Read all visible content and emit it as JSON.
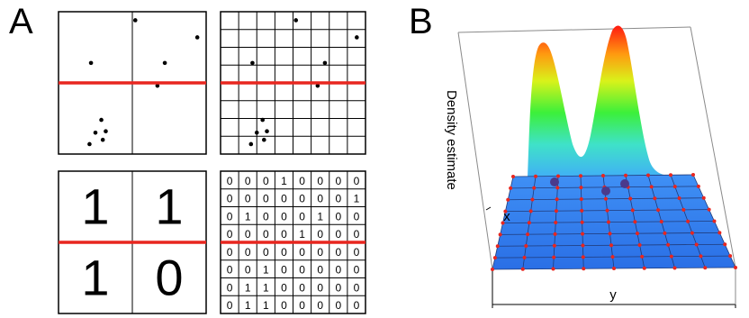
{
  "panels": {
    "a": "A",
    "b": "B"
  },
  "coarse_counts": [
    [
      "1",
      "1"
    ],
    [
      "1",
      "0"
    ]
  ],
  "fine_counts": [
    [
      "0",
      "0",
      "0",
      "1",
      "0",
      "0",
      "0",
      "0"
    ],
    [
      "0",
      "0",
      "0",
      "0",
      "0",
      "0",
      "0",
      "1"
    ],
    [
      "0",
      "1",
      "0",
      "0",
      "0",
      "1",
      "0",
      "0"
    ],
    [
      "0",
      "0",
      "0",
      "0",
      "1",
      "0",
      "0",
      "0"
    ],
    [
      "0",
      "0",
      "0",
      "0",
      "0",
      "0",
      "0",
      "0"
    ],
    [
      "0",
      "0",
      "1",
      "0",
      "0",
      "0",
      "0",
      "0"
    ],
    [
      "0",
      "1",
      "1",
      "0",
      "0",
      "0",
      "0",
      "0"
    ],
    [
      "0",
      "1",
      "1",
      "0",
      "0",
      "0",
      "0",
      "0"
    ]
  ],
  "points": [
    {
      "x": 0.52,
      "y": 0.06
    },
    {
      "x": 0.94,
      "y": 0.18
    },
    {
      "x": 0.22,
      "y": 0.36
    },
    {
      "x": 0.72,
      "y": 0.36
    },
    {
      "x": 0.67,
      "y": 0.52
    },
    {
      "x": 0.29,
      "y": 0.76
    },
    {
      "x": 0.25,
      "y": 0.85
    },
    {
      "x": 0.32,
      "y": 0.84
    },
    {
      "x": 0.3,
      "y": 0.9
    },
    {
      "x": 0.21,
      "y": 0.93
    }
  ],
  "colors": {
    "divider": "#e8261f",
    "surface_base": "#2f7df2"
  },
  "surface_axes": {
    "z_label": "Density estimate",
    "x_label": "x",
    "y_label": "y"
  }
}
